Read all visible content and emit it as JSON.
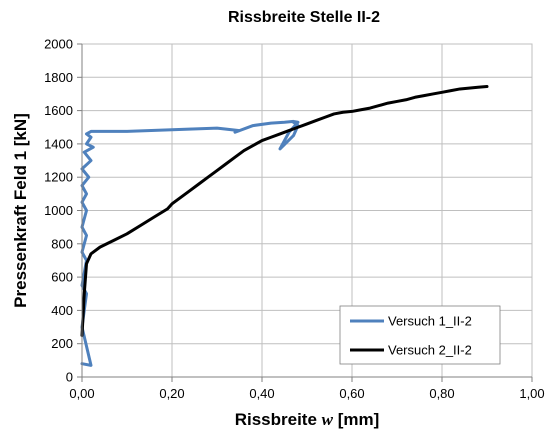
{
  "chart_data": {
    "type": "line",
    "title": "Rissbreite Stelle II-2",
    "xlabel_prefix": "Rissbreite ",
    "xlabel_var": "w",
    "xlabel_suffix": " [mm]",
    "ylabel": "Pressenkraft Feld 1 [kN]",
    "xlim": [
      0,
      1
    ],
    "ylim": [
      0,
      2000
    ],
    "x_ticks": [
      0,
      0.2,
      0.4,
      0.6,
      0.8,
      1.0
    ],
    "x_tick_labels": [
      "0,00",
      "0,20",
      "0,40",
      "0,60",
      "0,80",
      "1,00"
    ],
    "y_ticks": [
      0,
      200,
      400,
      600,
      800,
      1000,
      1200,
      1400,
      1600,
      1800,
      2000
    ],
    "y_tick_labels": [
      "0",
      "200",
      "400",
      "600",
      "800",
      "1000",
      "1200",
      "1400",
      "1600",
      "1800",
      "2000"
    ],
    "grid": true,
    "legend_position": "bottom-right",
    "series": [
      {
        "name": "Versuch 1_II-2",
        "color": "#4f81bd",
        "x": [
          0.0,
          0.02,
          0.0,
          0.01,
          0.0,
          0.01,
          0.0,
          0.01,
          0.0,
          0.01,
          0.0,
          0.01,
          0.0,
          0.015,
          0.0,
          0.02,
          0.005,
          0.025,
          0.01,
          0.02,
          0.01,
          0.02,
          0.05,
          0.1,
          0.2,
          0.3,
          0.35,
          0.34,
          0.38,
          0.42,
          0.45,
          0.47,
          0.48,
          0.46,
          0.44,
          0.47,
          0.48,
          0.47
        ],
        "y": [
          80,
          70,
          300,
          500,
          550,
          700,
          750,
          850,
          900,
          1000,
          1050,
          1100,
          1150,
          1200,
          1250,
          1300,
          1350,
          1380,
          1400,
          1440,
          1460,
          1475,
          1475,
          1475,
          1485,
          1495,
          1480,
          1470,
          1510,
          1525,
          1530,
          1535,
          1530,
          1470,
          1370,
          1450,
          1510,
          1530
        ]
      },
      {
        "name": "Versuch 2_II-2",
        "color": "#000000",
        "x": [
          0.0,
          0.005,
          0.01,
          0.02,
          0.04,
          0.07,
          0.1,
          0.13,
          0.16,
          0.19,
          0.2,
          0.22,
          0.24,
          0.26,
          0.28,
          0.3,
          0.32,
          0.34,
          0.36,
          0.38,
          0.4,
          0.42,
          0.44,
          0.46,
          0.48,
          0.5,
          0.52,
          0.54,
          0.56,
          0.58,
          0.6,
          0.62,
          0.64,
          0.66,
          0.68,
          0.7,
          0.72,
          0.74,
          0.76,
          0.78,
          0.8,
          0.82,
          0.84,
          0.86,
          0.88,
          0.9
        ],
        "y": [
          250,
          500,
          680,
          740,
          780,
          820,
          860,
          910,
          960,
          1010,
          1040,
          1080,
          1120,
          1160,
          1200,
          1240,
          1280,
          1320,
          1360,
          1390,
          1420,
          1440,
          1460,
          1480,
          1500,
          1520,
          1540,
          1560,
          1580,
          1590,
          1595,
          1605,
          1615,
          1630,
          1645,
          1655,
          1665,
          1680,
          1690,
          1700,
          1710,
          1720,
          1730,
          1735,
          1740,
          1745
        ]
      }
    ]
  }
}
